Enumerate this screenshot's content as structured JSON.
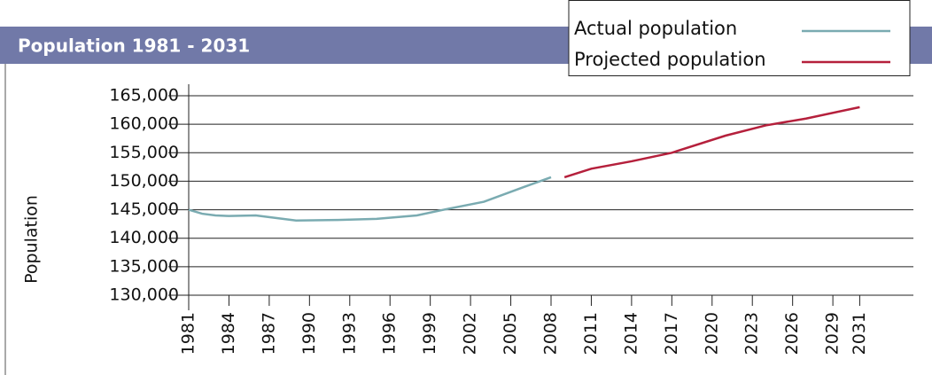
{
  "chart_data": {
    "type": "line",
    "title": "Population 1981 - 2031",
    "y_label": "Population",
    "xlim": [
      1981,
      2035
    ],
    "xticks": [
      1981,
      1984,
      1987,
      1990,
      1993,
      1996,
      1999,
      2002,
      2005,
      2008,
      2011,
      2014,
      2017,
      2020,
      2023,
      2026,
      2029,
      2031
    ],
    "ylim": [
      130000,
      165000
    ],
    "yticks": [
      {
        "value": 130000,
        "label": "130,000"
      },
      {
        "value": 135000,
        "label": "135,000"
      },
      {
        "value": 140000,
        "label": "140,000"
      },
      {
        "value": 145000,
        "label": "145,000"
      },
      {
        "value": 150000,
        "label": "150,000"
      },
      {
        "value": 155000,
        "label": "155,000"
      },
      {
        "value": 160000,
        "label": "160,000"
      },
      {
        "value": 165000,
        "label": "165,000"
      }
    ],
    "grid": true,
    "legend": "top-right",
    "series": [
      {
        "name": "Actual population",
        "color": "#7aabb1",
        "x": [
          1981,
          1982,
          1983,
          1984,
          1986,
          1989,
          1992,
          1995,
          1998,
          2000,
          2003,
          2006,
          2008
        ],
        "values": [
          145000,
          144300,
          144000,
          143900,
          144000,
          143100,
          143200,
          143400,
          144000,
          145000,
          146400,
          149000,
          150700
        ]
      },
      {
        "name": "Projected population",
        "color": "#b5203c",
        "x": [
          2009,
          2011,
          2014,
          2017,
          2021,
          2024,
          2027,
          2031
        ],
        "values": [
          150700,
          152200,
          153500,
          155000,
          158000,
          159800,
          161000,
          163000
        ]
      }
    ]
  }
}
